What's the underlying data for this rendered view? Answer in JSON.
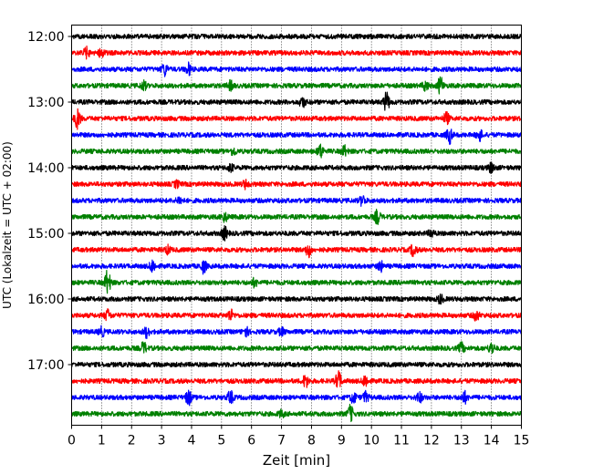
{
  "chart_data": {
    "type": "line",
    "title": "",
    "xlabel": "Zeit  [min]",
    "ylabel": "UTC (Lokalzeit = UTC + 02:00)",
    "xlim": [
      0,
      15
    ],
    "x_ticks": [
      "0",
      "1",
      "2",
      "3",
      "4",
      "5",
      "6",
      "7",
      "8",
      "9",
      "10",
      "11",
      "12",
      "13",
      "14",
      "15"
    ],
    "grid": "vertical dotted",
    "y_ticks": [
      {
        "label": "12:00",
        "row": 0
      },
      {
        "label": "13:00",
        "row": 4
      },
      {
        "label": "14:00",
        "row": 8
      },
      {
        "label": "15:00",
        "row": 12
      },
      {
        "label": "16:00",
        "row": 16
      },
      {
        "label": "17:00",
        "row": 20
      }
    ],
    "color_cycle": [
      "#000000",
      "#ff0000",
      "#0000ff",
      "#008000"
    ],
    "row_interval_minutes": 15,
    "start_time": "12:00",
    "rows": [
      {
        "start": "12:00",
        "events": []
      },
      {
        "start": "12:15",
        "events": [
          [
            0.5,
            0.8
          ],
          [
            1.0,
            0.8
          ]
        ]
      },
      {
        "start": "12:30",
        "events": [
          [
            3.1,
            1.0
          ],
          [
            3.9,
            0.9
          ]
        ]
      },
      {
        "start": "12:45",
        "events": [
          [
            2.4,
            0.7
          ],
          [
            5.3,
            0.7
          ],
          [
            11.8,
            0.8
          ],
          [
            12.3,
            1.4
          ]
        ]
      },
      {
        "start": "13:00",
        "events": [
          [
            7.7,
            0.8
          ],
          [
            10.5,
            1.6
          ]
        ]
      },
      {
        "start": "13:15",
        "events": [
          [
            0.2,
            1.6
          ],
          [
            12.5,
            0.9
          ]
        ]
      },
      {
        "start": "13:30",
        "events": [
          [
            12.6,
            1.3
          ],
          [
            13.6,
            0.9
          ]
        ]
      },
      {
        "start": "13:45",
        "events": [
          [
            8.3,
            1.1
          ],
          [
            9.1,
            0.8
          ],
          [
            5.4,
            0.6
          ]
        ]
      },
      {
        "start": "14:00",
        "events": [
          [
            14.0,
            0.8
          ],
          [
            5.3,
            0.6
          ]
        ]
      },
      {
        "start": "14:15",
        "events": [
          [
            5.8,
            0.6
          ],
          [
            3.5,
            0.5
          ]
        ]
      },
      {
        "start": "14:30",
        "events": [
          [
            9.7,
            0.8
          ],
          [
            3.6,
            0.6
          ]
        ]
      },
      {
        "start": "14:45",
        "events": [
          [
            10.2,
            1.1
          ],
          [
            5.1,
            0.7
          ]
        ]
      },
      {
        "start": "15:00",
        "events": [
          [
            5.1,
            1.0
          ],
          [
            12.0,
            0.6
          ]
        ]
      },
      {
        "start": "15:15",
        "events": [
          [
            7.9,
            1.1
          ],
          [
            11.4,
            1.0
          ],
          [
            3.2,
            0.6
          ]
        ]
      },
      {
        "start": "15:30",
        "events": [
          [
            2.7,
            1.0
          ],
          [
            4.4,
            1.0
          ],
          [
            10.3,
            0.8
          ]
        ]
      },
      {
        "start": "15:45",
        "events": [
          [
            1.2,
            2.0
          ],
          [
            6.1,
            0.6
          ]
        ]
      },
      {
        "start": "16:00",
        "events": [
          [
            12.3,
            0.7
          ]
        ]
      },
      {
        "start": "16:15",
        "events": [
          [
            1.2,
            0.9
          ],
          [
            5.3,
            0.9
          ],
          [
            13.5,
            0.8
          ]
        ]
      },
      {
        "start": "16:30",
        "events": [
          [
            1.0,
            0.7
          ],
          [
            2.5,
            0.8
          ],
          [
            5.8,
            0.8
          ],
          [
            7.0,
            0.6
          ]
        ]
      },
      {
        "start": "16:45",
        "events": [
          [
            2.4,
            0.9
          ],
          [
            13.0,
            0.8
          ],
          [
            14.0,
            0.9
          ]
        ]
      },
      {
        "start": "17:00",
        "events": []
      },
      {
        "start": "17:15",
        "events": [
          [
            7.8,
            1.0
          ],
          [
            8.9,
            1.5
          ],
          [
            9.8,
            1.0
          ]
        ]
      },
      {
        "start": "17:30",
        "events": [
          [
            3.9,
            1.2
          ],
          [
            5.3,
            1.0
          ],
          [
            9.4,
            0.9
          ],
          [
            9.8,
            0.8
          ],
          [
            11.6,
            0.8
          ],
          [
            13.1,
            0.9
          ]
        ]
      },
      {
        "start": "17:45",
        "events": [
          [
            9.3,
            1.3
          ],
          [
            7.0,
            0.5
          ]
        ]
      }
    ]
  }
}
